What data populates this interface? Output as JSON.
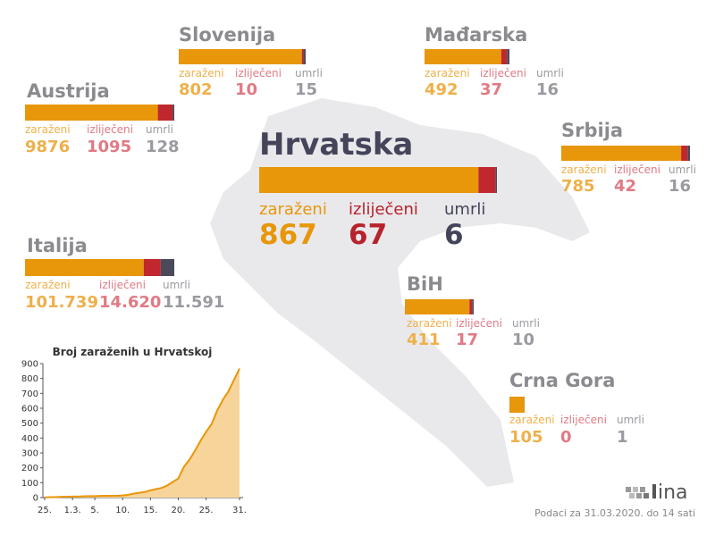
{
  "colors": [
    "#e8960a",
    "#c0282d",
    "#4a4a5a"
  ],
  "status_labels": [
    "zaraženi",
    "izliječeni",
    "umrli"
  ],
  "countries": [
    {
      "name": "Slovenija",
      "values": [
        802,
        10,
        15
      ]
    },
    {
      "name": "Mađarska",
      "values": [
        492,
        37,
        16
      ]
    },
    {
      "name": "Austrija",
      "values": [
        9876,
        1095,
        128
      ]
    },
    {
      "name": "Hrvatska",
      "values": [
        867,
        67,
        6
      ]
    },
    {
      "name": "Srbija",
      "values": [
        785,
        42,
        16
      ]
    },
    {
      "name": "Italija",
      "values": [
        101739,
        14620,
        11591
      ],
      "value_labels": [
        "101.739",
        "14.620",
        "11.591"
      ]
    },
    {
      "name": "BiH",
      "values": [
        411,
        17,
        10
      ]
    },
    {
      "name": "Crna Gora",
      "values": [
        105,
        0,
        1
      ]
    }
  ],
  "chart_data": {
    "type": "area",
    "title": "Broj zaraženih u Hrvatskoj",
    "color": "#e8960a",
    "fill": "#f7d49a",
    "categories": [
      "25.",
      null,
      null,
      null,
      null,
      "1.3.",
      null,
      null,
      null,
      "5.",
      null,
      null,
      null,
      null,
      "10.",
      null,
      null,
      null,
      null,
      "15.",
      null,
      null,
      null,
      null,
      "20.",
      null,
      null,
      null,
      null,
      "25.",
      null,
      null,
      null,
      null,
      null,
      "31."
    ],
    "values": [
      1,
      3,
      3,
      5,
      6,
      7,
      7,
      9,
      10,
      10,
      11,
      12,
      12,
      12,
      14,
      19,
      27,
      32,
      38,
      49,
      57,
      65,
      81,
      105,
      128,
      206,
      254,
      315,
      382,
      442,
      495,
      586,
      657,
      713,
      790,
      867
    ],
    "ylim": [
      0,
      900
    ],
    "yticks": [
      0,
      100,
      200,
      300,
      400,
      500,
      600,
      700,
      800,
      900
    ]
  },
  "footer": "Podaci za 31.03.2020. do 14 sati",
  "logo_text": "ina"
}
